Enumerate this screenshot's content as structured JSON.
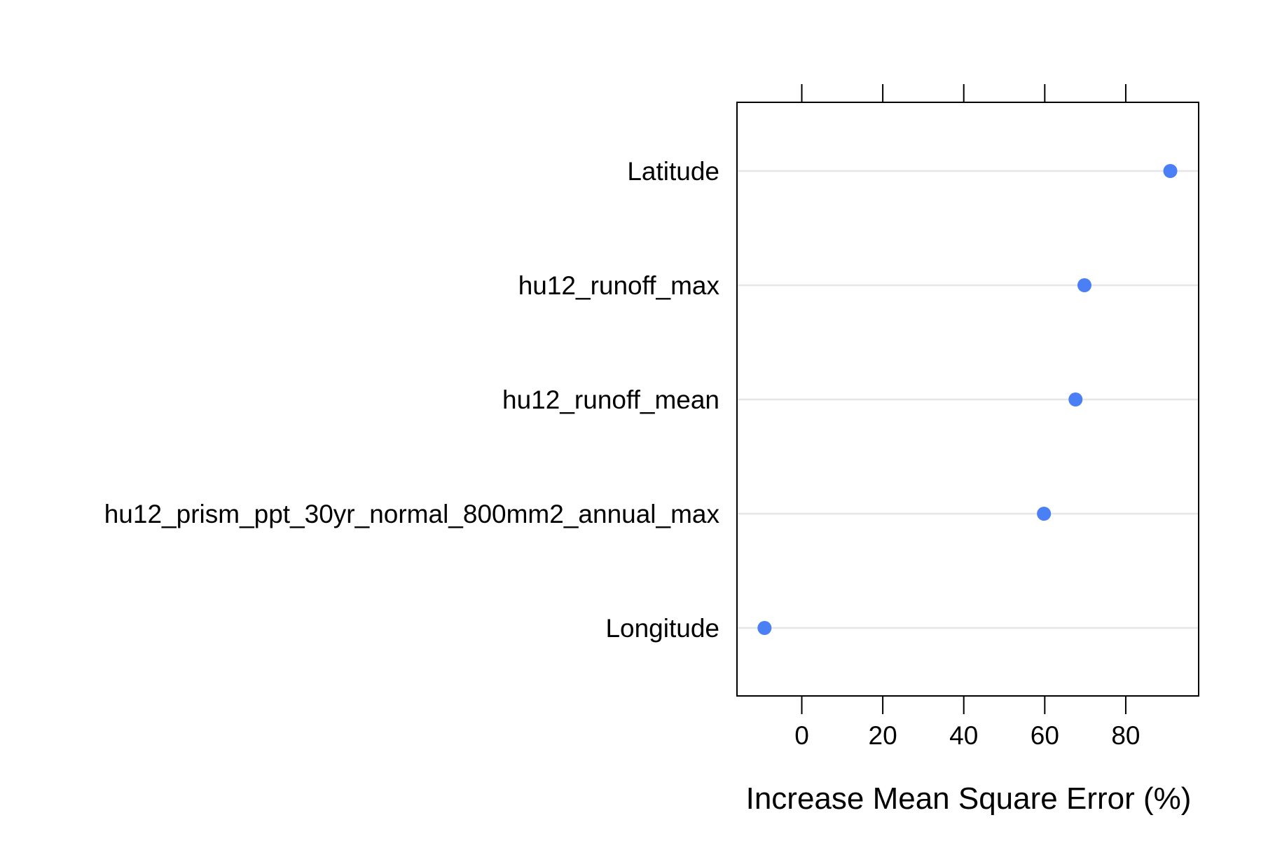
{
  "chart_data": {
    "type": "dot",
    "title": "",
    "xlabel": "Increase Mean Square Error (%)",
    "ylabel": "",
    "xlim": [
      -16,
      98
    ],
    "xticks": [
      0,
      20,
      40,
      60,
      80
    ],
    "grid": "horizontal",
    "categories": [
      "Latitude",
      "hu12_runoff_max",
      "hu12_runoff_mean",
      "hu12_prism_ppt_30yr_normal_800mm2_annual_max",
      "Longitude"
    ],
    "values": [
      91,
      69.8,
      67.6,
      59.8,
      -9.2
    ],
    "point_color": "#4a7ff5",
    "grid_color": "#e6e6e6"
  }
}
